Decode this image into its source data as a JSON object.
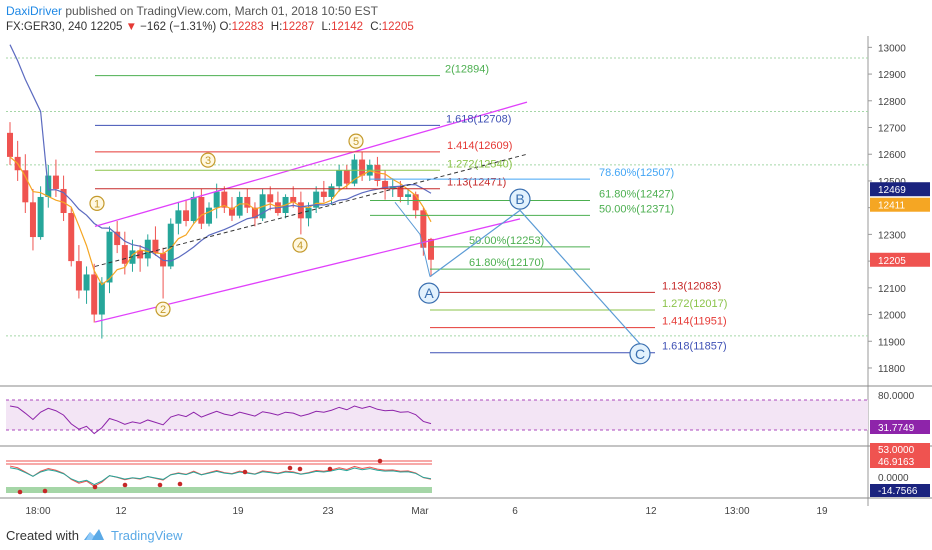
{
  "header": {
    "author": "DaxiDriver",
    "published": " published on TradingView.com, March 01, 2018 10:50 EST",
    "symbol": "FX:GER30, 240",
    "last": "12205",
    "arrow": "▼",
    "change": "−162 (−1.31%)",
    "o_label": "O:",
    "o": "12283",
    "h_label": "H:",
    "h": "12287",
    "l_label": "L:",
    "l": "12142",
    "c_label": "C:",
    "c": "12205"
  },
  "footer": {
    "created": "Created with",
    "brand": "TradingView"
  },
  "colors": {
    "up": "#26a69a",
    "down": "#ef5350",
    "magenta": "#e040fb",
    "wave": "#5b9bd5",
    "ma_orange": "#f5a623",
    "ma_blue": "#5c6bc0"
  },
  "chart_data": {
    "type": "candlestick",
    "price_axis": {
      "ticks": [
        "13000",
        "12900",
        "12800",
        "12700",
        "12600",
        "12500",
        "12400",
        "12300",
        "12200",
        "12100",
        "12000",
        "11900",
        "11800"
      ],
      "range": [
        11740,
        13035
      ]
    },
    "time_axis": {
      "ticks": [
        "18:00",
        "12",
        "19",
        "23",
        "Mar",
        "6",
        "12",
        "13:00",
        "19"
      ]
    },
    "price_tags": [
      {
        "label": "12469",
        "value": 12469,
        "color": "#1a237e"
      },
      {
        "label": "12411",
        "value": 12411,
        "color": "#f5a623"
      },
      {
        "label": "12205",
        "value": 12205,
        "color": "#ef5350"
      }
    ],
    "candles": [
      [
        12680,
        12720,
        12560,
        12590
      ],
      [
        12590,
        12650,
        12500,
        12540
      ],
      [
        12540,
        12600,
        12380,
        12420
      ],
      [
        12420,
        12470,
        12240,
        12290
      ],
      [
        12290,
        12480,
        12280,
        12440
      ],
      [
        12440,
        12560,
        12400,
        12520
      ],
      [
        12520,
        12580,
        12440,
        12470
      ],
      [
        12470,
        12520,
        12350,
        12380
      ],
      [
        12380,
        12400,
        12180,
        12200
      ],
      [
        12200,
        12260,
        12060,
        12090
      ],
      [
        12090,
        12180,
        12040,
        12150
      ],
      [
        12150,
        12190,
        11970,
        12000
      ],
      [
        12000,
        12140,
        11910,
        12120
      ],
      [
        12120,
        12330,
        12080,
        12310
      ],
      [
        12310,
        12350,
        12230,
        12260
      ],
      [
        12260,
        12310,
        12150,
        12190
      ],
      [
        12190,
        12280,
        12160,
        12240
      ],
      [
        12240,
        12260,
        12160,
        12210
      ],
      [
        12210,
        12300,
        12180,
        12280
      ],
      [
        12280,
        12330,
        12220,
        12230
      ],
      [
        12230,
        12250,
        12060,
        12180
      ],
      [
        12180,
        12360,
        12170,
        12340
      ],
      [
        12340,
        12420,
        12300,
        12390
      ],
      [
        12390,
        12430,
        12330,
        12350
      ],
      [
        12350,
        12460,
        12340,
        12440
      ],
      [
        12440,
        12470,
        12320,
        12340
      ],
      [
        12340,
        12420,
        12330,
        12400
      ],
      [
        12400,
        12490,
        12360,
        12460
      ],
      [
        12460,
        12480,
        12380,
        12400
      ],
      [
        12400,
        12440,
        12350,
        12370
      ],
      [
        12370,
        12460,
        12360,
        12440
      ],
      [
        12440,
        12470,
        12380,
        12400
      ],
      [
        12400,
        12420,
        12330,
        12360
      ],
      [
        12360,
        12470,
        12350,
        12450
      ],
      [
        12450,
        12480,
        12390,
        12420
      ],
      [
        12420,
        12460,
        12370,
        12380
      ],
      [
        12380,
        12450,
        12360,
        12440
      ],
      [
        12440,
        12480,
        12400,
        12420
      ],
      [
        12420,
        12460,
        12300,
        12360
      ],
      [
        12360,
        12420,
        12330,
        12400
      ],
      [
        12400,
        12480,
        12380,
        12460
      ],
      [
        12460,
        12500,
        12420,
        12440
      ],
      [
        12440,
        12490,
        12410,
        12480
      ],
      [
        12480,
        12560,
        12460,
        12540
      ],
      [
        12540,
        12560,
        12470,
        12490
      ],
      [
        12490,
        12600,
        12480,
        12580
      ],
      [
        12580,
        12610,
        12500,
        12520
      ],
      [
        12520,
        12580,
        12500,
        12560
      ],
      [
        12560,
        12590,
        12480,
        12500
      ],
      [
        12500,
        12540,
        12430,
        12470
      ],
      [
        12470,
        12510,
        12440,
        12480
      ],
      [
        12480,
        12500,
        12420,
        12440
      ],
      [
        12440,
        12470,
        12410,
        12450
      ],
      [
        12450,
        12460,
        12360,
        12390
      ],
      [
        12390,
        12400,
        12220,
        12250
      ],
      [
        12283,
        12287,
        12142,
        12205
      ]
    ],
    "fib_levels": [
      {
        "label": "2(12894)",
        "value": 12894,
        "color": "#4caf50"
      },
      {
        "label": "1.618(12708)",
        "value": 12708,
        "color": "#3f51b5"
      },
      {
        "label": "1.414(12609)",
        "value": 12609,
        "color": "#e53935"
      },
      {
        "label": "1.272(12540)",
        "value": 12540,
        "color": "#8bc34a"
      },
      {
        "label": "1.13(12471)",
        "value": 12471,
        "color": "#c62828"
      },
      {
        "label": "78.60%(12507)",
        "value": 12507,
        "color": "#42a5f5"
      },
      {
        "label": "61.80%(12427)",
        "value": 12427,
        "color": "#4caf50"
      },
      {
        "label": "50.00%(12371)",
        "value": 12371,
        "color": "#4caf50"
      },
      {
        "label": "50.00%(12253)",
        "value": 12253,
        "color": "#4caf50"
      },
      {
        "label": "61.80%(12170)",
        "value": 12170,
        "color": "#4caf50"
      },
      {
        "label": "1.13(12083)",
        "value": 12083,
        "color": "#c62828"
      },
      {
        "label": "1.272(12017)",
        "value": 12017,
        "color": "#8bc34a"
      },
      {
        "label": "1.414(11951)",
        "value": 11951,
        "color": "#e53935"
      },
      {
        "label": "1.618(11857)",
        "value": 11857,
        "color": "#3f51b5"
      }
    ],
    "wave_labels": [
      "1",
      "2",
      "3",
      "4",
      "5",
      "A",
      "B",
      "C"
    ],
    "rsi": {
      "value_label": "31.7749",
      "ticks": [
        "80.0000"
      ]
    },
    "macd": {
      "labels": [
        "53.0000",
        "46.9163",
        "0.0000",
        "-14.7566"
      ]
    }
  }
}
